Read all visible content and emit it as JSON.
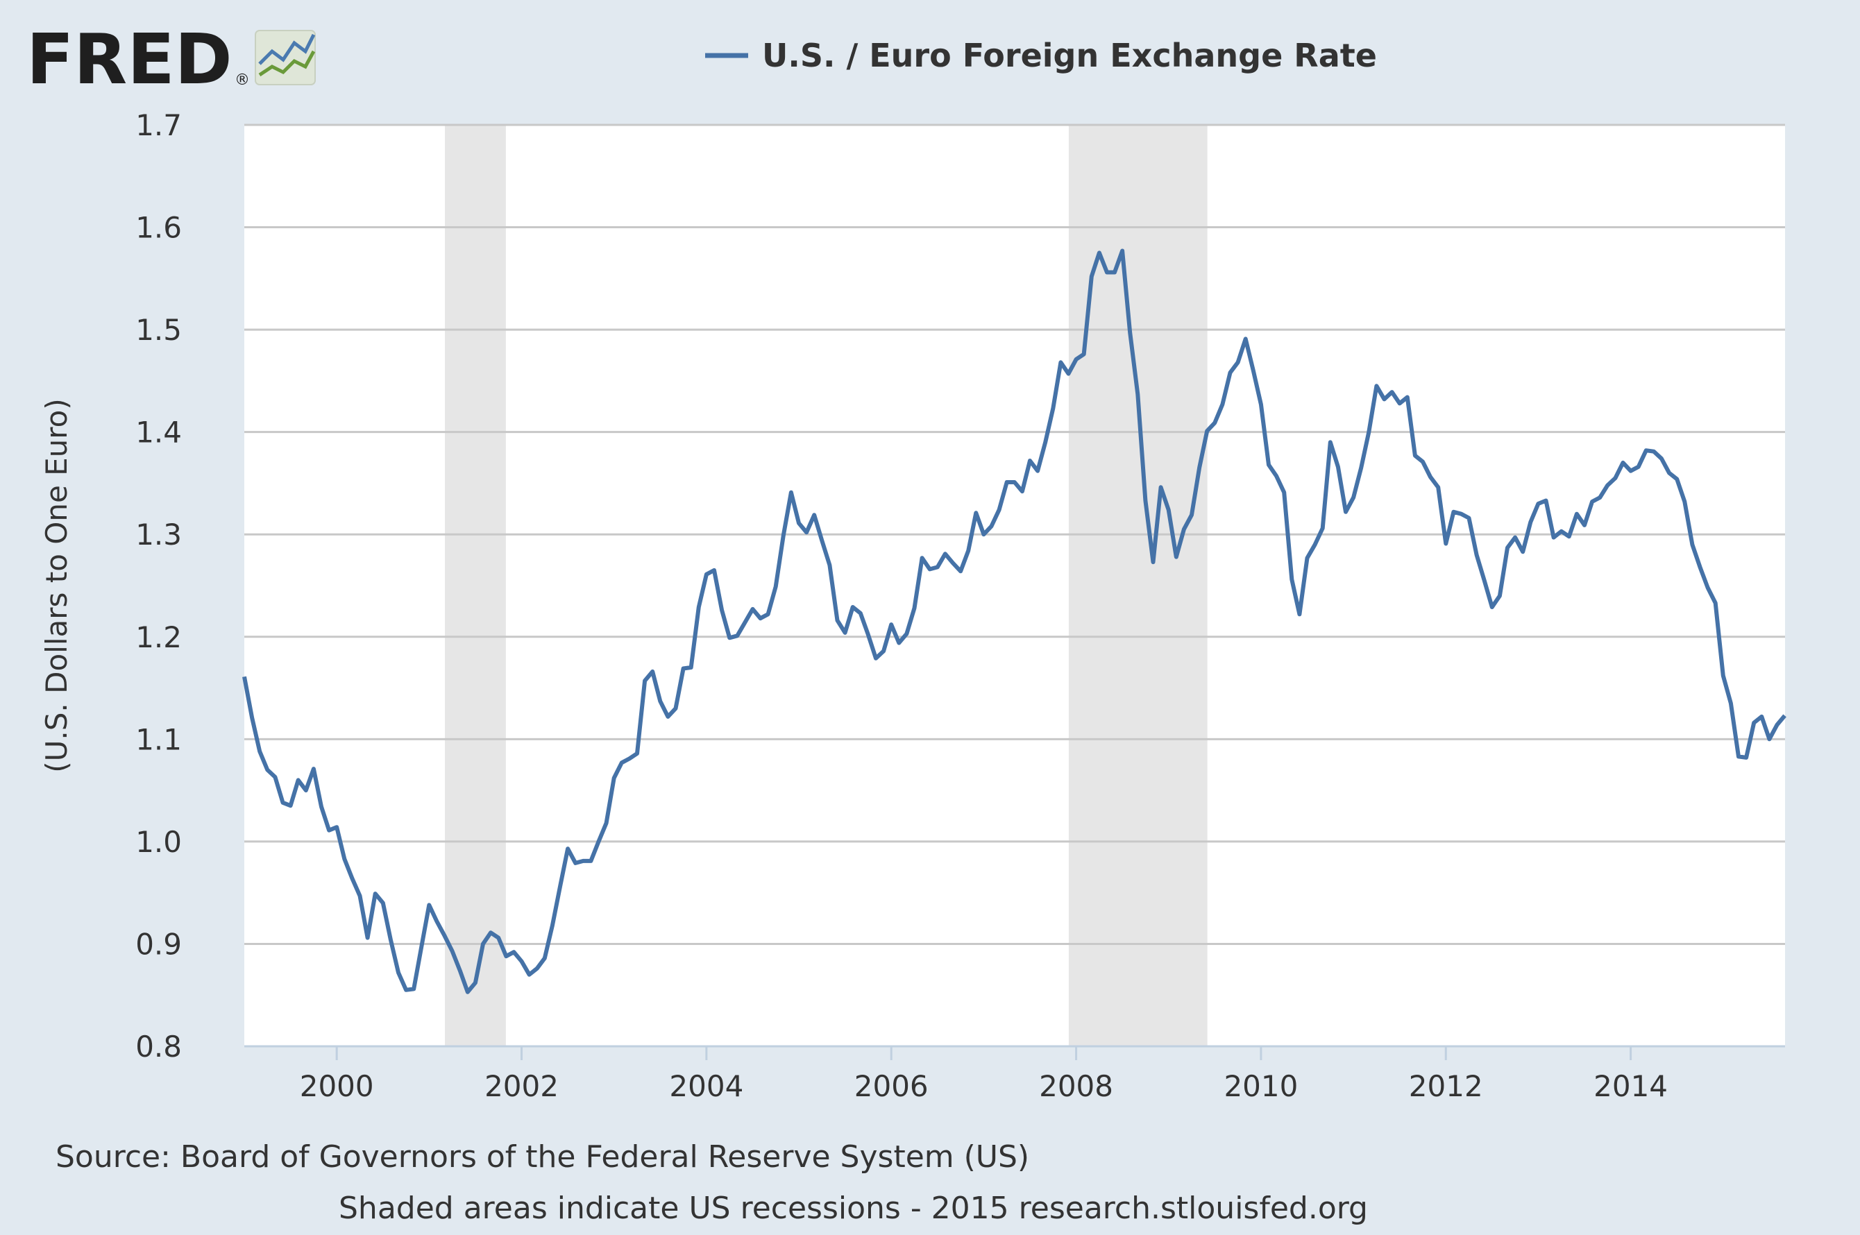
{
  "logo": {
    "text": "FRED",
    "registered": "®"
  },
  "colors": {
    "background": "#e1e9f0",
    "plot_bg": "#ffffff",
    "line": "#4572a7",
    "recession": "#e6e6e6",
    "grid": "#c8c8c8"
  },
  "footer": {
    "source": "Source: Board of Governors of the Federal Reserve System (US)",
    "note": "Shaded areas indicate US recessions - 2015 research.stlouisfed.org"
  },
  "chart_data": {
    "type": "line",
    "title": "U.S. / Euro Foreign Exchange Rate",
    "ylabel": "(U.S. Dollars to One Euro)",
    "xlabel": "",
    "xlim": [
      1999.0,
      2015.67
    ],
    "ylim": [
      0.8,
      1.7
    ],
    "x_ticks": [
      "2000",
      "2002",
      "2004",
      "2006",
      "2008",
      "2010",
      "2012",
      "2014"
    ],
    "y_ticks": [
      "0.8",
      "0.9",
      "1.0",
      "1.1",
      "1.2",
      "1.3",
      "1.4",
      "1.5",
      "1.6",
      "1.7"
    ],
    "grid": true,
    "legend": "top-center",
    "recessions": [
      [
        2001.17,
        2001.83
      ],
      [
        2007.92,
        2009.42
      ]
    ],
    "series": [
      {
        "name": "U.S. / Euro Foreign Exchange Rate",
        "start": "1999-01",
        "frequency": "monthly",
        "values": [
          1.161,
          1.121,
          1.088,
          1.07,
          1.063,
          1.038,
          1.035,
          1.06,
          1.05,
          1.071,
          1.034,
          1.011,
          1.014,
          0.983,
          0.964,
          0.947,
          0.906,
          0.949,
          0.94,
          0.904,
          0.872,
          0.855,
          0.856,
          0.897,
          0.938,
          0.922,
          0.908,
          0.893,
          0.874,
          0.853,
          0.862,
          0.9,
          0.911,
          0.906,
          0.888,
          0.892,
          0.883,
          0.87,
          0.876,
          0.886,
          0.918,
          0.956,
          0.993,
          0.979,
          0.981,
          0.981,
          1.0,
          1.018,
          1.062,
          1.077,
          1.081,
          1.086,
          1.157,
          1.166,
          1.137,
          1.122,
          1.13,
          1.169,
          1.17,
          1.229,
          1.261,
          1.265,
          1.226,
          1.199,
          1.201,
          1.214,
          1.227,
          1.218,
          1.222,
          1.249,
          1.299,
          1.341,
          1.311,
          1.302,
          1.319,
          1.294,
          1.27,
          1.216,
          1.204,
          1.229,
          1.223,
          1.202,
          1.179,
          1.186,
          1.212,
          1.194,
          1.203,
          1.228,
          1.277,
          1.266,
          1.268,
          1.281,
          1.272,
          1.264,
          1.284,
          1.321,
          1.3,
          1.308,
          1.324,
          1.351,
          1.351,
          1.342,
          1.372,
          1.362,
          1.39,
          1.423,
          1.468,
          1.457,
          1.471,
          1.476,
          1.552,
          1.575,
          1.556,
          1.556,
          1.577,
          1.497,
          1.437,
          1.333,
          1.273,
          1.346,
          1.324,
          1.278,
          1.305,
          1.319,
          1.365,
          1.401,
          1.409,
          1.427,
          1.458,
          1.468,
          1.491,
          1.46,
          1.427,
          1.368,
          1.357,
          1.341,
          1.256,
          1.222,
          1.277,
          1.29,
          1.306,
          1.39,
          1.366,
          1.322,
          1.336,
          1.365,
          1.4,
          1.445,
          1.432,
          1.439,
          1.428,
          1.434,
          1.377,
          1.371,
          1.356,
          1.346,
          1.291,
          1.322,
          1.32,
          1.316,
          1.28,
          1.255,
          1.229,
          1.24,
          1.287,
          1.297,
          1.283,
          1.312,
          1.33,
          1.333,
          1.297,
          1.303,
          1.298,
          1.32,
          1.309,
          1.332,
          1.336,
          1.348,
          1.355,
          1.37,
          1.362,
          1.366,
          1.382,
          1.381,
          1.374,
          1.36,
          1.354,
          1.332,
          1.29,
          1.268,
          1.248,
          1.233,
          1.162,
          1.135,
          1.083,
          1.082,
          1.116,
          1.122,
          1.1,
          1.114,
          1.123
        ]
      }
    ]
  }
}
